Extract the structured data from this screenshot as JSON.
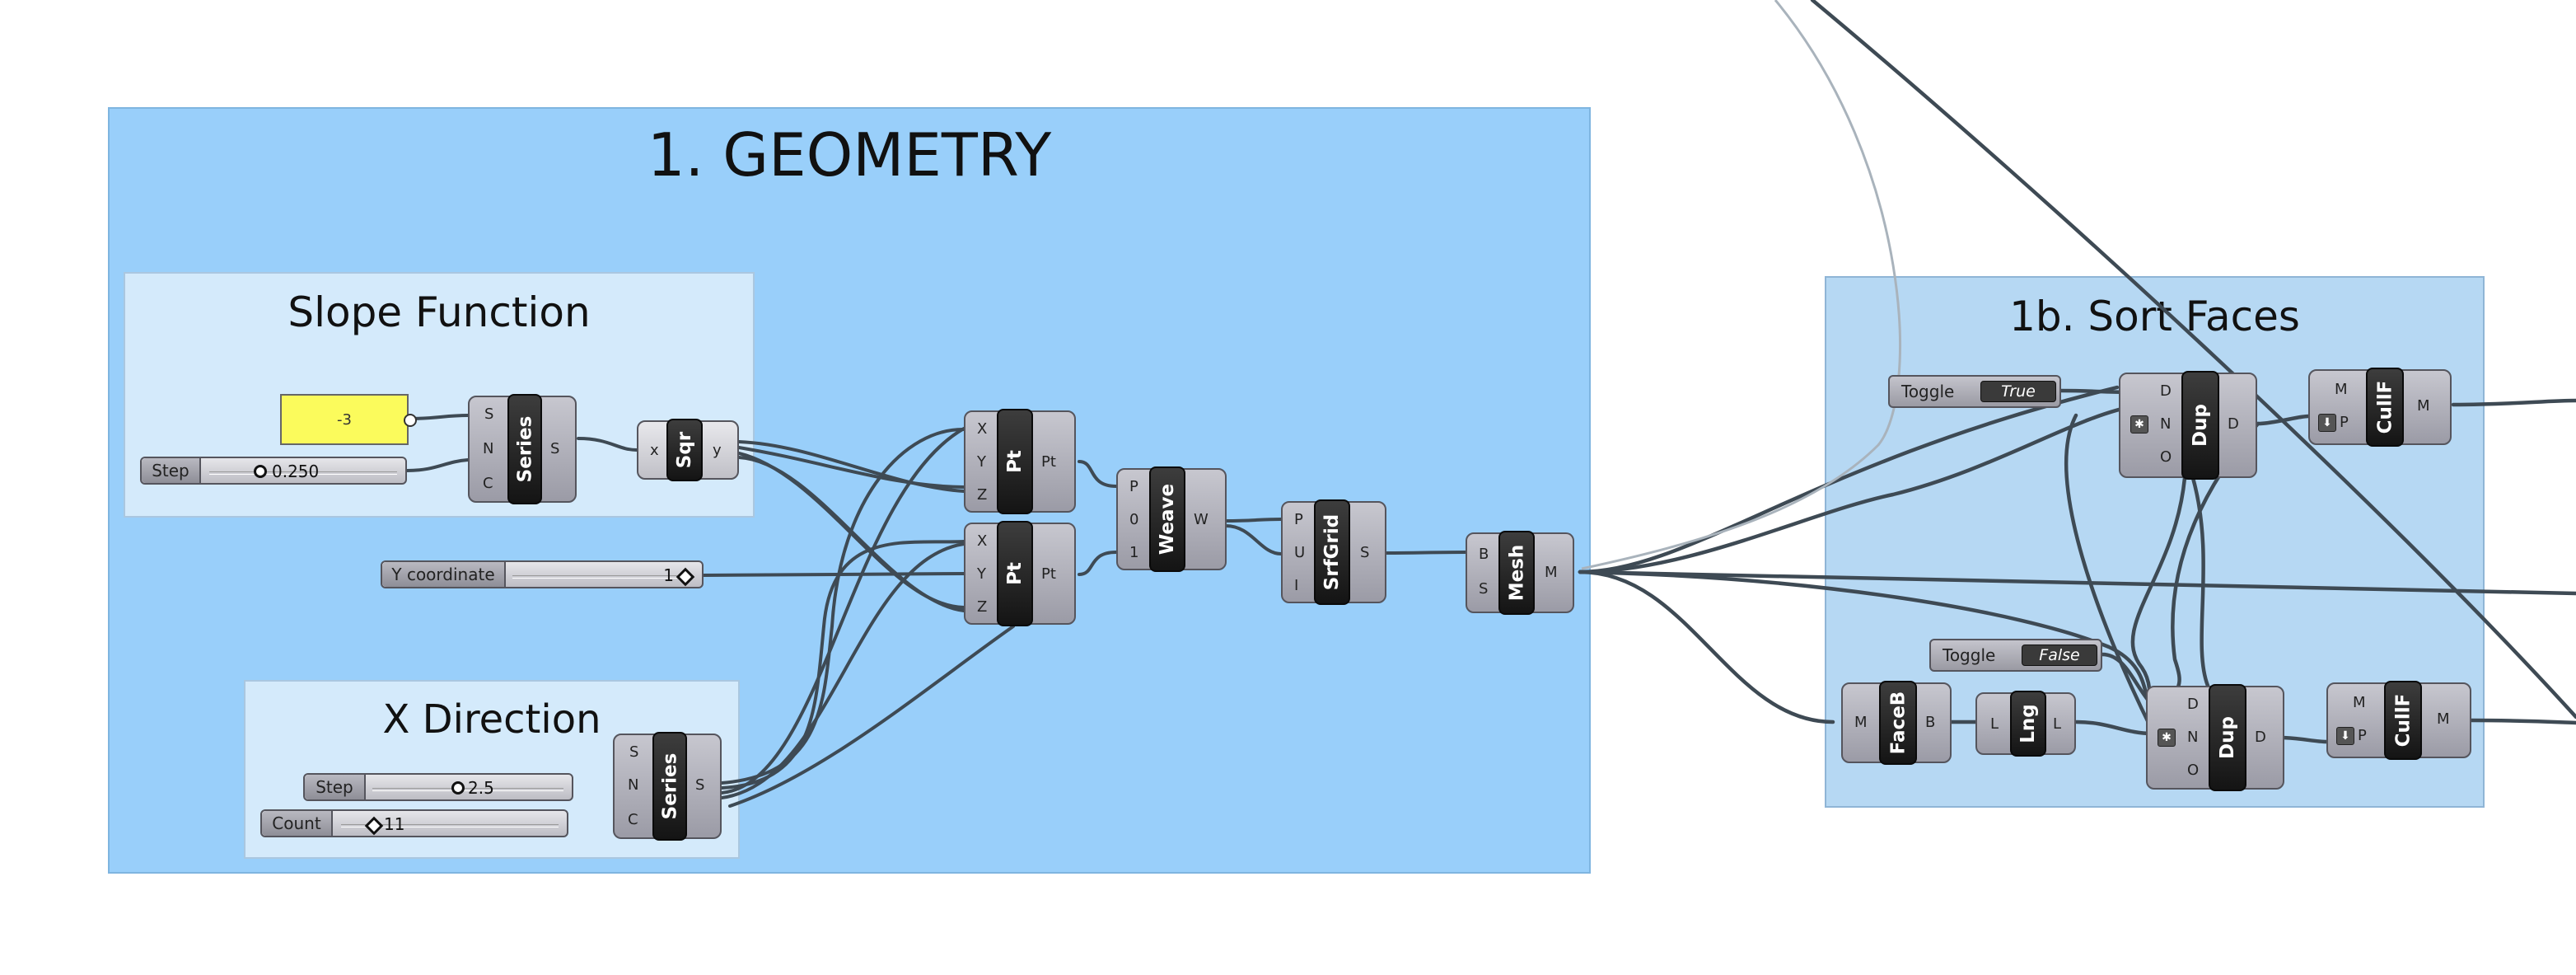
{
  "groups": {
    "geometry": "1. GEOMETRY",
    "slope": "Slope Function",
    "xdir": "X Direction",
    "sort": "1b. Sort Faces"
  },
  "panel": {
    "value": "-3"
  },
  "sliders": {
    "step1": {
      "label": "Step",
      "value": "0.250"
    },
    "ycoord": {
      "label": "Y coordinate",
      "value": "1"
    },
    "step2": {
      "label": "Step",
      "value": "2.5"
    },
    "count": {
      "label": "Count",
      "value": "11"
    }
  },
  "toggles": {
    "t1": {
      "label": "Toggle",
      "value": "True"
    },
    "t2": {
      "label": "Toggle",
      "value": "False"
    }
  },
  "components": {
    "series1": {
      "name": "Series",
      "inputs": [
        "S",
        "N",
        "C"
      ],
      "outputs": [
        "S"
      ]
    },
    "sqr": {
      "name": "Sqr",
      "inputs": [
        "x"
      ],
      "outputs": [
        "y"
      ]
    },
    "pt1": {
      "name": "Pt",
      "inputs": [
        "X",
        "Y",
        "Z"
      ],
      "outputs": [
        "Pt"
      ]
    },
    "pt2": {
      "name": "Pt",
      "inputs": [
        "X",
        "Y",
        "Z"
      ],
      "outputs": [
        "Pt"
      ]
    },
    "weave": {
      "name": "Weave",
      "inputs": [
        "P",
        "0",
        "1"
      ],
      "outputs": [
        "W"
      ]
    },
    "srfgrid": {
      "name": "SrfGrid",
      "inputs": [
        "P",
        "U",
        "I"
      ],
      "outputs": [
        "S"
      ]
    },
    "mesh": {
      "name": "Mesh",
      "inputs": [
        "B",
        "S"
      ],
      "outputs": [
        "M"
      ]
    },
    "series2": {
      "name": "Series",
      "inputs": [
        "S",
        "N",
        "C"
      ],
      "outputs": [
        "S"
      ]
    },
    "dup1": {
      "name": "Dup",
      "inputs": [
        "D",
        "N",
        "O"
      ],
      "outputs": [
        "D"
      ]
    },
    "cullf1": {
      "name": "CullF",
      "inputs": [
        "M",
        "P"
      ],
      "outputs": [
        "M"
      ]
    },
    "faceb": {
      "name": "FaceB",
      "inputs": [
        "M"
      ],
      "outputs": [
        "B"
      ]
    },
    "lng": {
      "name": "Lng",
      "inputs": [
        "L"
      ],
      "outputs": [
        "L"
      ]
    },
    "dup2": {
      "name": "Dup",
      "inputs": [
        "D",
        "N",
        "O"
      ],
      "outputs": [
        "D"
      ]
    },
    "cullf2": {
      "name": "CullF",
      "inputs": [
        "M",
        "P"
      ],
      "outputs": [
        "M"
      ]
    }
  },
  "colors": {
    "canvas": "#ffffff",
    "group_main": "#99cffa",
    "group_sub": "#d4eafb",
    "group_sort": "#b6d8f3",
    "wire": "#3e4a54",
    "panel": "#fbfb5c"
  },
  "icons": {
    "flatten": "asterisk-icon",
    "graft": "down-arrow-icon"
  }
}
